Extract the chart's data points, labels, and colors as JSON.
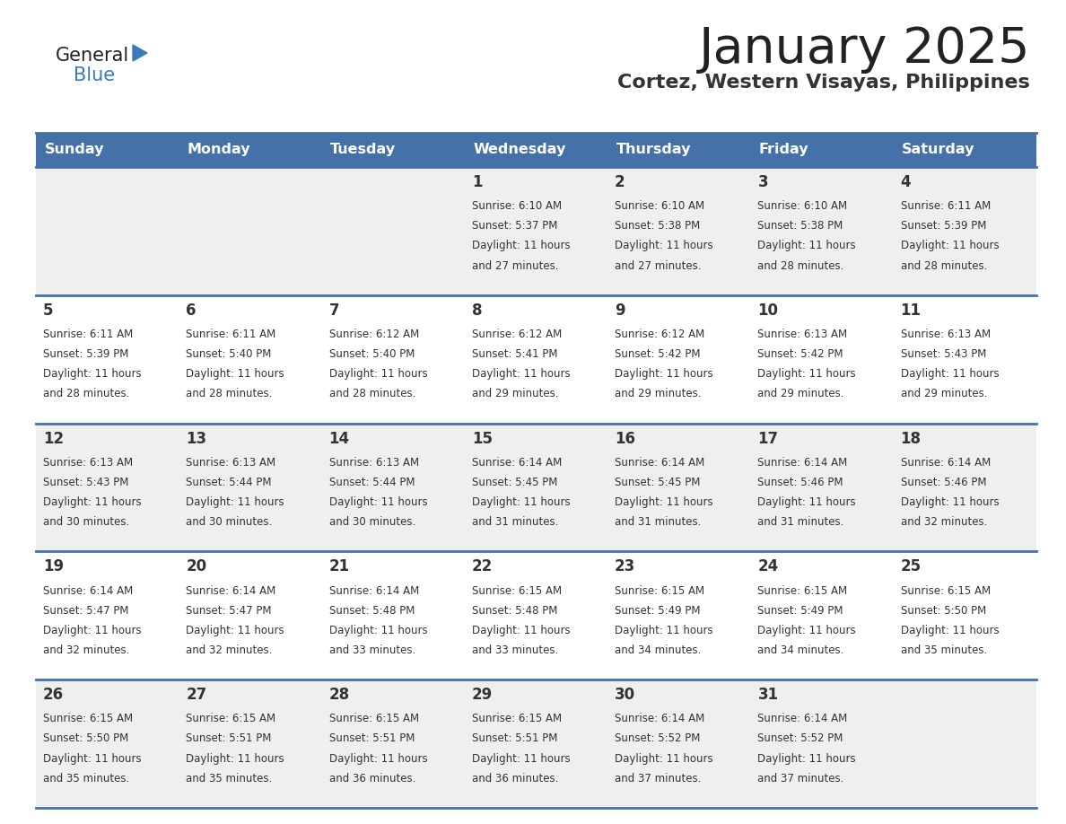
{
  "title": "January 2025",
  "subtitle": "Cortez, Western Visayas, Philippines",
  "days_of_week": [
    "Sunday",
    "Monday",
    "Tuesday",
    "Wednesday",
    "Thursday",
    "Friday",
    "Saturday"
  ],
  "header_bg": "#4472a8",
  "header_text": "#ffffff",
  "row_bg_odd": "#efefef",
  "row_bg_even": "#ffffff",
  "divider_color": "#4472a8",
  "text_color": "#333333",
  "calendar_data": [
    [
      {
        "day": "",
        "sunrise": "",
        "sunset": "",
        "daylight_h": "",
        "daylight_m": ""
      },
      {
        "day": "",
        "sunrise": "",
        "sunset": "",
        "daylight_h": "",
        "daylight_m": ""
      },
      {
        "day": "",
        "sunrise": "",
        "sunset": "",
        "daylight_h": "",
        "daylight_m": ""
      },
      {
        "day": "1",
        "sunrise": "6:10 AM",
        "sunset": "5:37 PM",
        "daylight_h": "11 hours",
        "daylight_m": "27 minutes."
      },
      {
        "day": "2",
        "sunrise": "6:10 AM",
        "sunset": "5:38 PM",
        "daylight_h": "11 hours",
        "daylight_m": "27 minutes."
      },
      {
        "day": "3",
        "sunrise": "6:10 AM",
        "sunset": "5:38 PM",
        "daylight_h": "11 hours",
        "daylight_m": "28 minutes."
      },
      {
        "day": "4",
        "sunrise": "6:11 AM",
        "sunset": "5:39 PM",
        "daylight_h": "11 hours",
        "daylight_m": "28 minutes."
      }
    ],
    [
      {
        "day": "5",
        "sunrise": "6:11 AM",
        "sunset": "5:39 PM",
        "daylight_h": "11 hours",
        "daylight_m": "28 minutes."
      },
      {
        "day": "6",
        "sunrise": "6:11 AM",
        "sunset": "5:40 PM",
        "daylight_h": "11 hours",
        "daylight_m": "28 minutes."
      },
      {
        "day": "7",
        "sunrise": "6:12 AM",
        "sunset": "5:40 PM",
        "daylight_h": "11 hours",
        "daylight_m": "28 minutes."
      },
      {
        "day": "8",
        "sunrise": "6:12 AM",
        "sunset": "5:41 PM",
        "daylight_h": "11 hours",
        "daylight_m": "29 minutes."
      },
      {
        "day": "9",
        "sunrise": "6:12 AM",
        "sunset": "5:42 PM",
        "daylight_h": "11 hours",
        "daylight_m": "29 minutes."
      },
      {
        "day": "10",
        "sunrise": "6:13 AM",
        "sunset": "5:42 PM",
        "daylight_h": "11 hours",
        "daylight_m": "29 minutes."
      },
      {
        "day": "11",
        "sunrise": "6:13 AM",
        "sunset": "5:43 PM",
        "daylight_h": "11 hours",
        "daylight_m": "29 minutes."
      }
    ],
    [
      {
        "day": "12",
        "sunrise": "6:13 AM",
        "sunset": "5:43 PM",
        "daylight_h": "11 hours",
        "daylight_m": "30 minutes."
      },
      {
        "day": "13",
        "sunrise": "6:13 AM",
        "sunset": "5:44 PM",
        "daylight_h": "11 hours",
        "daylight_m": "30 minutes."
      },
      {
        "day": "14",
        "sunrise": "6:13 AM",
        "sunset": "5:44 PM",
        "daylight_h": "11 hours",
        "daylight_m": "30 minutes."
      },
      {
        "day": "15",
        "sunrise": "6:14 AM",
        "sunset": "5:45 PM",
        "daylight_h": "11 hours",
        "daylight_m": "31 minutes."
      },
      {
        "day": "16",
        "sunrise": "6:14 AM",
        "sunset": "5:45 PM",
        "daylight_h": "11 hours",
        "daylight_m": "31 minutes."
      },
      {
        "day": "17",
        "sunrise": "6:14 AM",
        "sunset": "5:46 PM",
        "daylight_h": "11 hours",
        "daylight_m": "31 minutes."
      },
      {
        "day": "18",
        "sunrise": "6:14 AM",
        "sunset": "5:46 PM",
        "daylight_h": "11 hours",
        "daylight_m": "32 minutes."
      }
    ],
    [
      {
        "day": "19",
        "sunrise": "6:14 AM",
        "sunset": "5:47 PM",
        "daylight_h": "11 hours",
        "daylight_m": "32 minutes."
      },
      {
        "day": "20",
        "sunrise": "6:14 AM",
        "sunset": "5:47 PM",
        "daylight_h": "11 hours",
        "daylight_m": "32 minutes."
      },
      {
        "day": "21",
        "sunrise": "6:14 AM",
        "sunset": "5:48 PM",
        "daylight_h": "11 hours",
        "daylight_m": "33 minutes."
      },
      {
        "day": "22",
        "sunrise": "6:15 AM",
        "sunset": "5:48 PM",
        "daylight_h": "11 hours",
        "daylight_m": "33 minutes."
      },
      {
        "day": "23",
        "sunrise": "6:15 AM",
        "sunset": "5:49 PM",
        "daylight_h": "11 hours",
        "daylight_m": "34 minutes."
      },
      {
        "day": "24",
        "sunrise": "6:15 AM",
        "sunset": "5:49 PM",
        "daylight_h": "11 hours",
        "daylight_m": "34 minutes."
      },
      {
        "day": "25",
        "sunrise": "6:15 AM",
        "sunset": "5:50 PM",
        "daylight_h": "11 hours",
        "daylight_m": "35 minutes."
      }
    ],
    [
      {
        "day": "26",
        "sunrise": "6:15 AM",
        "sunset": "5:50 PM",
        "daylight_h": "11 hours",
        "daylight_m": "35 minutes."
      },
      {
        "day": "27",
        "sunrise": "6:15 AM",
        "sunset": "5:51 PM",
        "daylight_h": "11 hours",
        "daylight_m": "35 minutes."
      },
      {
        "day": "28",
        "sunrise": "6:15 AM",
        "sunset": "5:51 PM",
        "daylight_h": "11 hours",
        "daylight_m": "36 minutes."
      },
      {
        "day": "29",
        "sunrise": "6:15 AM",
        "sunset": "5:51 PM",
        "daylight_h": "11 hours",
        "daylight_m": "36 minutes."
      },
      {
        "day": "30",
        "sunrise": "6:14 AM",
        "sunset": "5:52 PM",
        "daylight_h": "11 hours",
        "daylight_m": "37 minutes."
      },
      {
        "day": "31",
        "sunrise": "6:14 AM",
        "sunset": "5:52 PM",
        "daylight_h": "11 hours",
        "daylight_m": "37 minutes."
      },
      {
        "day": "",
        "sunrise": "",
        "sunset": "",
        "daylight_h": "",
        "daylight_m": ""
      }
    ]
  ]
}
